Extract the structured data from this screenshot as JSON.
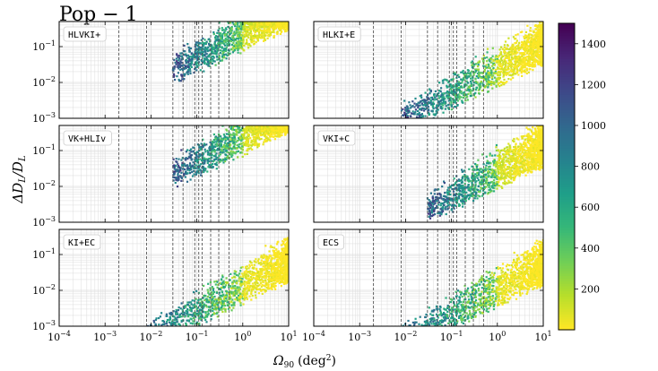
{
  "figure": {
    "title": "Pop − 1",
    "ylabel_main": "ΔD",
    "ylabel_sub1": "L",
    "ylabel_mid": "/D",
    "ylabel_sub2": "L",
    "xlabel_main": "Ω",
    "xlabel_sub": "90",
    "xlabel_unit": "(deg",
    "xlabel_sup": "2",
    "xlabel_close": ")"
  },
  "colors": {
    "viridis": [
      "#fde725",
      "#b5de2b",
      "#6ece58",
      "#35b779",
      "#1f9e89",
      "#26828e",
      "#31688e",
      "#3e4989",
      "#482878",
      "#440154"
    ],
    "vline": "#555555",
    "grid": "#dcdcdc"
  },
  "chart_data": {
    "type": "scatter",
    "x_scale": "log",
    "y_scale": "log",
    "xlim": [
      0.0001,
      10
    ],
    "ylim": [
      0.001,
      0.5
    ],
    "x_ticks": [
      {
        "v": 0.0001,
        "base": "10",
        "exp": "−4"
      },
      {
        "v": 0.001,
        "base": "10",
        "exp": "−3"
      },
      {
        "v": 0.01,
        "base": "10",
        "exp": "−2"
      },
      {
        "v": 0.1,
        "base": "10",
        "exp": "−1"
      },
      {
        "v": 1,
        "base": "10",
        "exp": "0"
      },
      {
        "v": 10,
        "base": "10",
        "exp": "1"
      }
    ],
    "y_ticks": [
      {
        "v": 0.001,
        "base": "10",
        "exp": "−3"
      },
      {
        "v": 0.01,
        "base": "10",
        "exp": "−2"
      },
      {
        "v": 0.1,
        "base": "10",
        "exp": "−1"
      }
    ],
    "reference_lines_x": [
      0.002,
      0.008,
      0.03,
      0.05,
      0.09,
      0.11,
      0.13,
      0.2,
      0.3,
      0.5
    ],
    "colorbar": {
      "vmin": 0,
      "vmax": 1500,
      "ticks": [
        200,
        400,
        600,
        800,
        1000,
        1200,
        1400
      ],
      "orientation": "reversed viridis, yellow at low values"
    },
    "panels": [
      {
        "label": "HLVKI+",
        "x_min": 0.03,
        "y_lower_at_1": 0.09
      },
      {
        "label": "HLKI+E",
        "x_min": 0.008,
        "y_lower_at_1": 0.009
      },
      {
        "label": "VK+HLIv",
        "x_min": 0.03,
        "y_lower_at_1": 0.09
      },
      {
        "label": "VKI+C",
        "x_min": 0.03,
        "y_lower_at_1": 0.01
      },
      {
        "label": "KI+EC",
        "x_min": 0.005,
        "y_lower_at_1": 0.005
      },
      {
        "label": "ECS",
        "x_min": 0.006,
        "y_lower_at_1": 0.004
      }
    ]
  }
}
